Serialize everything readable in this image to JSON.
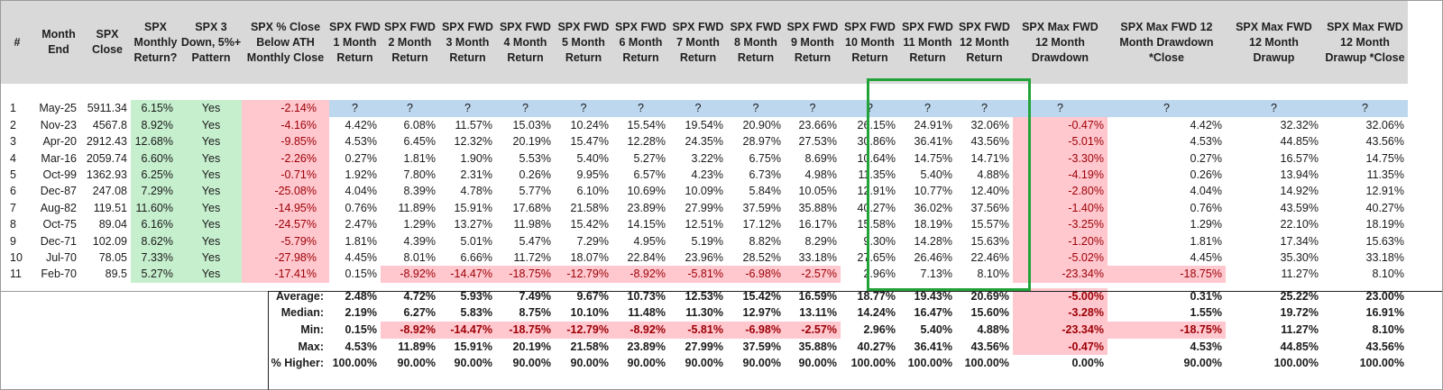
{
  "headers": [
    "#",
    "Month\nEnd",
    "SPX\nClose",
    "SPX\nMonthly\nReturn?",
    "SPX 3\nDown, 5%+\nPattern",
    "SPX % Close\nBelow ATH\nMonthly Close",
    "SPX FWD\n1 Month\nReturn",
    "SPX FWD\n2 Month\nReturn",
    "SPX FWD\n3 Month\nReturn",
    "SPX FWD\n4 Month\nReturn",
    "SPX FWD\n5 Month\nReturn",
    "SPX FWD\n6 Month\nReturn",
    "SPX FWD\n7 Month\nReturn",
    "SPX FWD\n8 Month\nReturn",
    "SPX FWD\n9 Month\nReturn",
    "SPX FWD\n10 Month\nReturn",
    "SPX FWD\n11 Month\nReturn",
    "SPX FWD\n12 Month\nReturn",
    "SPX Max FWD\n12 Month\nDrawdown",
    "SPX Max FWD 12\nMonth Drawdown\n*Close",
    "SPX Max FWD\n12 Month\nDrawup",
    "SPX Max FWD\n12 Month\nDrawup *Close"
  ],
  "rows": [
    [
      "1",
      "May-25",
      "5911.34",
      "6.15%",
      "Yes",
      "-2.14%",
      "?",
      "?",
      "?",
      "?",
      "?",
      "?",
      "?",
      "?",
      "?",
      "?",
      "?",
      "?",
      "?",
      "?",
      "?",
      "?"
    ],
    [
      "2",
      "Nov-23",
      "4567.8",
      "8.92%",
      "Yes",
      "-4.16%",
      "4.42%",
      "6.08%",
      "11.57%",
      "15.03%",
      "10.24%",
      "15.54%",
      "19.54%",
      "20.90%",
      "23.66%",
      "26.15%",
      "24.91%",
      "32.06%",
      "-0.47%",
      "4.42%",
      "32.32%",
      "32.06%"
    ],
    [
      "3",
      "Apr-20",
      "2912.43",
      "12.68%",
      "Yes",
      "-9.85%",
      "4.53%",
      "6.45%",
      "12.32%",
      "20.19%",
      "15.47%",
      "12.28%",
      "24.35%",
      "28.97%",
      "27.53%",
      "30.86%",
      "36.41%",
      "43.56%",
      "-5.01%",
      "4.53%",
      "44.85%",
      "43.56%"
    ],
    [
      "4",
      "Mar-16",
      "2059.74",
      "6.60%",
      "Yes",
      "-2.26%",
      "0.27%",
      "1.81%",
      "1.90%",
      "5.53%",
      "5.40%",
      "5.27%",
      "3.22%",
      "6.75%",
      "8.69%",
      "10.64%",
      "14.75%",
      "14.71%",
      "-3.30%",
      "0.27%",
      "16.57%",
      "14.75%"
    ],
    [
      "5",
      "Oct-99",
      "1362.93",
      "6.25%",
      "Yes",
      "-0.71%",
      "1.92%",
      "7.80%",
      "2.31%",
      "0.26%",
      "9.95%",
      "6.57%",
      "4.23%",
      "6.73%",
      "4.98%",
      "11.35%",
      "5.40%",
      "4.88%",
      "-4.19%",
      "0.26%",
      "13.94%",
      "11.35%"
    ],
    [
      "6",
      "Dec-87",
      "247.08",
      "7.29%",
      "Yes",
      "-25.08%",
      "4.04%",
      "8.39%",
      "4.78%",
      "5.77%",
      "6.10%",
      "10.69%",
      "10.09%",
      "5.84%",
      "10.05%",
      "12.91%",
      "10.77%",
      "12.40%",
      "-2.80%",
      "4.04%",
      "14.92%",
      "12.91%"
    ],
    [
      "7",
      "Aug-82",
      "119.51",
      "11.60%",
      "Yes",
      "-14.95%",
      "0.76%",
      "11.89%",
      "15.91%",
      "17.68%",
      "21.58%",
      "23.89%",
      "27.99%",
      "37.59%",
      "35.88%",
      "40.27%",
      "36.02%",
      "37.56%",
      "-1.40%",
      "0.76%",
      "43.59%",
      "40.27%"
    ],
    [
      "8",
      "Oct-75",
      "89.04",
      "6.16%",
      "Yes",
      "-24.57%",
      "2.47%",
      "1.29%",
      "13.27%",
      "11.98%",
      "15.42%",
      "14.15%",
      "12.51%",
      "17.12%",
      "16.17%",
      "15.58%",
      "18.19%",
      "15.57%",
      "-3.25%",
      "1.29%",
      "22.10%",
      "18.19%"
    ],
    [
      "9",
      "Dec-71",
      "102.09",
      "8.62%",
      "Yes",
      "-5.79%",
      "1.81%",
      "4.39%",
      "5.01%",
      "5.47%",
      "7.29%",
      "4.95%",
      "5.19%",
      "8.82%",
      "8.29%",
      "9.30%",
      "14.28%",
      "15.63%",
      "-1.20%",
      "1.81%",
      "17.34%",
      "15.63%"
    ],
    [
      "10",
      "Jul-70",
      "78.05",
      "7.33%",
      "Yes",
      "-27.98%",
      "4.45%",
      "8.01%",
      "6.66%",
      "11.72%",
      "18.07%",
      "22.84%",
      "23.96%",
      "28.52%",
      "33.18%",
      "27.65%",
      "26.46%",
      "22.46%",
      "-5.02%",
      "4.45%",
      "35.30%",
      "33.18%"
    ],
    [
      "11",
      "Feb-70",
      "89.5",
      "5.27%",
      "Yes",
      "-17.41%",
      "0.15%",
      "-8.92%",
      "-14.47%",
      "-18.75%",
      "-12.79%",
      "-8.92%",
      "-5.81%",
      "-6.98%",
      "-2.57%",
      "2.96%",
      "7.13%",
      "8.10%",
      "-23.34%",
      "-18.75%",
      "11.27%",
      "8.10%"
    ]
  ],
  "stats": [
    {
      "label": "Average:",
      "values": [
        "2.48%",
        "4.72%",
        "5.93%",
        "7.49%",
        "9.67%",
        "10.73%",
        "12.53%",
        "15.42%",
        "16.59%",
        "18.77%",
        "19.43%",
        "20.69%",
        "-5.00%",
        "0.31%",
        "25.22%",
        "23.00%"
      ]
    },
    {
      "label": "Median:",
      "values": [
        "2.19%",
        "6.27%",
        "5.83%",
        "8.75%",
        "10.10%",
        "11.48%",
        "11.30%",
        "12.97%",
        "13.11%",
        "14.24%",
        "16.47%",
        "15.60%",
        "-3.28%",
        "1.55%",
        "19.72%",
        "16.91%"
      ]
    },
    {
      "label": "Min:",
      "values": [
        "0.15%",
        "-8.92%",
        "-14.47%",
        "-18.75%",
        "-12.79%",
        "-8.92%",
        "-5.81%",
        "-6.98%",
        "-2.57%",
        "2.96%",
        "5.40%",
        "4.88%",
        "-23.34%",
        "-18.75%",
        "11.27%",
        "8.10%"
      ]
    },
    {
      "label": "Max:",
      "values": [
        "4.53%",
        "11.89%",
        "15.91%",
        "20.19%",
        "21.58%",
        "23.89%",
        "27.99%",
        "37.59%",
        "35.88%",
        "40.27%",
        "36.41%",
        "43.56%",
        "-0.47%",
        "4.53%",
        "44.85%",
        "43.56%"
      ]
    },
    {
      "label": "% Higher:",
      "values": [
        "100.00%",
        "90.00%",
        "90.00%",
        "90.00%",
        "90.00%",
        "90.00%",
        "90.00%",
        "90.00%",
        "90.00%",
        "100.00%",
        "100.00%",
        "100.00%",
        "0.00%",
        "90.00%",
        "100.00%",
        "100.00%"
      ]
    }
  ],
  "colors": {
    "header_bg": "#d9d9d9",
    "positive_fill": "#c6efce",
    "negative_fill": "#ffc7ce",
    "negative_text": "#9c0006",
    "current_row_fill": "#bdd7ee",
    "highlight_box": "#22a33a"
  }
}
